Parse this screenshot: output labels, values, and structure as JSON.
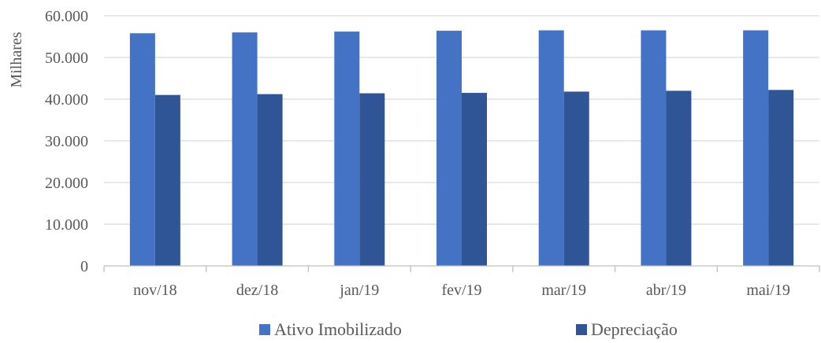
{
  "chart_data": {
    "type": "bar",
    "ylabel": "Milhares",
    "xlabel": "",
    "ylim": [
      0,
      60000
    ],
    "yticks": [
      0,
      10000,
      20000,
      30000,
      40000,
      50000,
      60000
    ],
    "ytick_labels": [
      "0",
      "10.000",
      "20.000",
      "30.000",
      "40.000",
      "50.000",
      "60.000"
    ],
    "categories": [
      "nov/18",
      "dez/18",
      "jan/19",
      "fev/19",
      "mar/19",
      "abr/19",
      "mai/19"
    ],
    "series": [
      {
        "name": "Ativo Imobilizado",
        "color": "#4472C4",
        "values": [
          55800,
          56000,
          56200,
          56400,
          56500,
          56500,
          56500
        ]
      },
      {
        "name": "Depreciação",
        "color": "#2F5597",
        "values": [
          41000,
          41200,
          41400,
          41500,
          41800,
          42000,
          42200
        ]
      }
    ],
    "grid": true,
    "gridline_color": "#D9D9D9",
    "legend_position": "bottom"
  }
}
